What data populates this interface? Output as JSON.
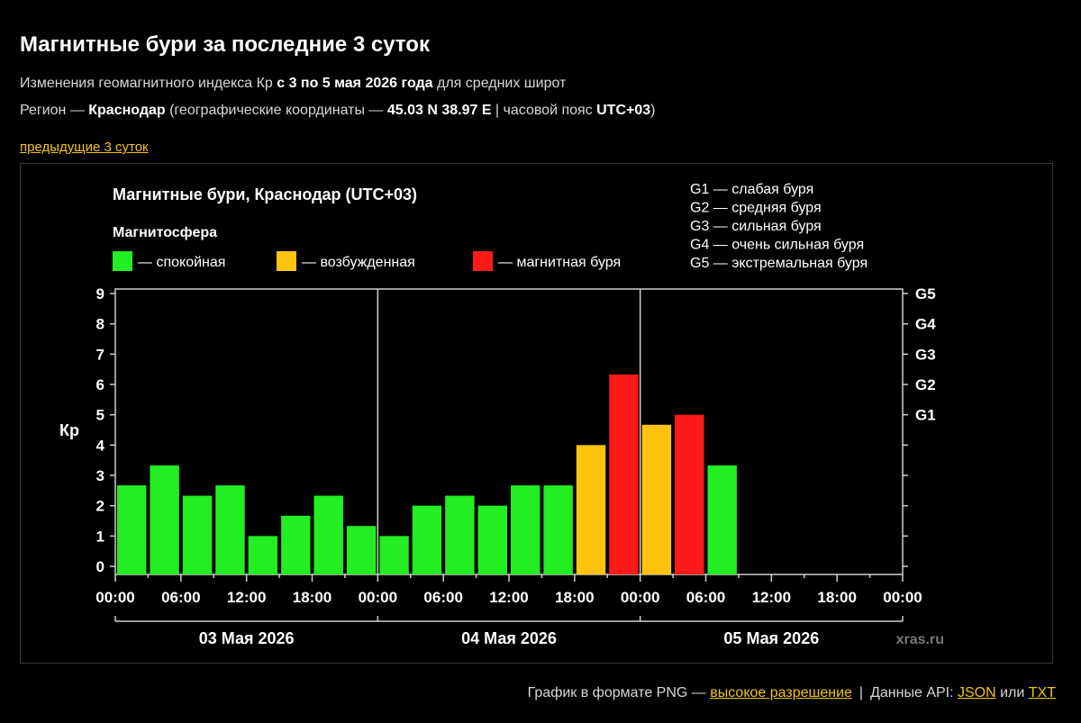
{
  "page": {
    "title": "Магнитные бури за последние 3 суток",
    "line1": {
      "pre": "Изменения геомагнитного индекса Кр ",
      "bold": "с 3 по 5 мая 2026 года",
      "post": " для средних широт"
    },
    "line2": {
      "pre": "Регион — ",
      "city": "Краснодар",
      "mid": " (географические координаты — ",
      "coords": "45.03 N 38.97 E",
      "mid2": " | часовой пояс ",
      "tz": "UTC+03",
      "post": ")"
    },
    "prev_link": "предыдущие 3 суток"
  },
  "footer": {
    "png_text": "График в формате PNG — ",
    "high_res": "высокое разрешение",
    "api_text": "Данные API: ",
    "json": "JSON",
    "or": " или ",
    "txt": "TXT"
  },
  "chart_data": {
    "type": "bar",
    "title": "Магнитные бури, Краснодар (UTC+03)",
    "ylabel": "Кр",
    "ylim": [
      0,
      9
    ],
    "y_ticks": [
      "0",
      "1",
      "2",
      "3",
      "4",
      "5",
      "6",
      "7",
      "8",
      "9"
    ],
    "g_ticks": [
      {
        "label": "G1",
        "value": 5
      },
      {
        "label": "G2",
        "value": 6
      },
      {
        "label": "G3",
        "value": 7
      },
      {
        "label": "G4",
        "value": 8
      },
      {
        "label": "G5",
        "value": 9
      }
    ],
    "x_ticks": [
      "00:00",
      "06:00",
      "12:00",
      "18:00",
      "00:00",
      "06:00",
      "12:00",
      "18:00",
      "00:00",
      "06:00",
      "12:00",
      "18:00",
      "00:00"
    ],
    "days": [
      "03 Мая 2026",
      "04 Мая 2026",
      "05 Мая 2026"
    ],
    "slots_total": 24,
    "values": [
      2.67,
      3.33,
      2.33,
      2.67,
      1.0,
      1.67,
      2.33,
      1.33,
      1.0,
      2.0,
      2.33,
      2.0,
      2.67,
      2.67,
      4.0,
      6.33,
      4.67,
      5.0,
      3.33
    ],
    "legend_title": "Магнитосфера",
    "legend": [
      {
        "color": "#22ee22",
        "label": "— спокойная"
      },
      {
        "color": "#ffc20e",
        "label": "— возбужденная"
      },
      {
        "color": "#ff1a1a",
        "label": "— магнитная буря"
      }
    ],
    "colors": {
      "quiet": "#22ee22",
      "active": "#ffc20e",
      "storm": "#ff1a1a"
    },
    "g_legend": [
      "G1 — слабая буря",
      "G2 — средняя буря",
      "G3 — сильная буря",
      "G4 — очень сильная буря",
      "G5 — экстремальная буря"
    ],
    "watermark": "xras.ru"
  }
}
